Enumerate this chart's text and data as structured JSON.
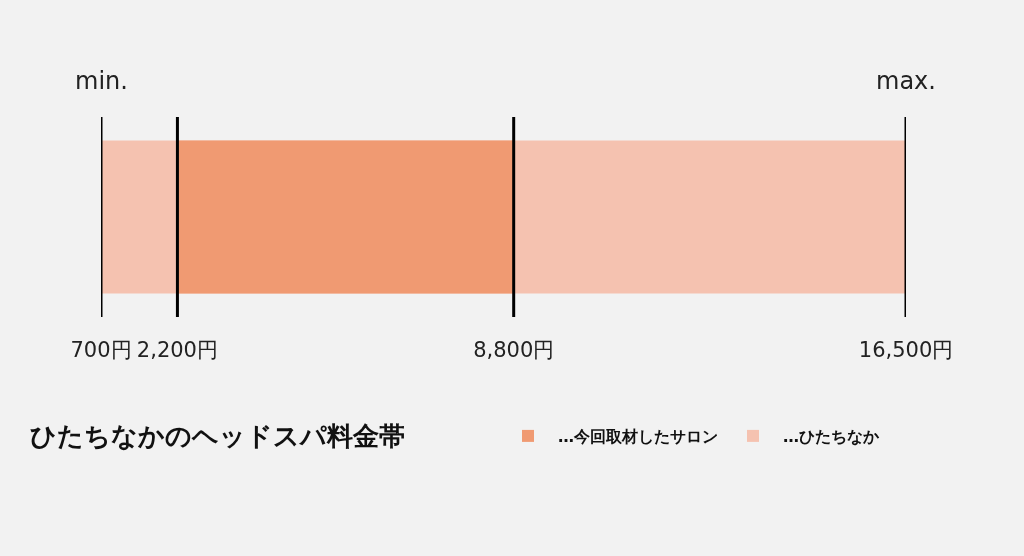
{
  "chart_data": {
    "type": "bar",
    "orientation": "horizontal",
    "title": "ひたちなかのヘッドスパ料金帯",
    "categories": [
      null
    ],
    "series": [
      {
        "name": "…ひたちなか",
        "color": "#f5c2b0",
        "base": [
          700
        ],
        "values": [
          15800
        ]
      },
      {
        "name": "…今回取材したサロン",
        "color": "#f09a72",
        "base": [
          2200
        ],
        "values": [
          6600
        ]
      }
    ],
    "xlim": [
      700,
      16500
    ],
    "xticks": [
      {
        "value": 700,
        "label": "700円"
      },
      {
        "value": 2200,
        "label": "2,200円"
      },
      {
        "value": 8800,
        "label": "8,800円"
      },
      {
        "value": 16500,
        "label": "16,500円"
      }
    ],
    "ref_lines": [
      {
        "axis": "x",
        "value": 700,
        "label": "min.",
        "color": "#000000"
      },
      {
        "axis": "x",
        "value": 2200,
        "color": "#000000"
      },
      {
        "axis": "x",
        "value": 8800,
        "color": "#000000"
      },
      {
        "axis": "x",
        "value": 16500,
        "label": "max.",
        "color": "#000000"
      }
    ],
    "legend": "bottom",
    "tick_labels": "x"
  }
}
